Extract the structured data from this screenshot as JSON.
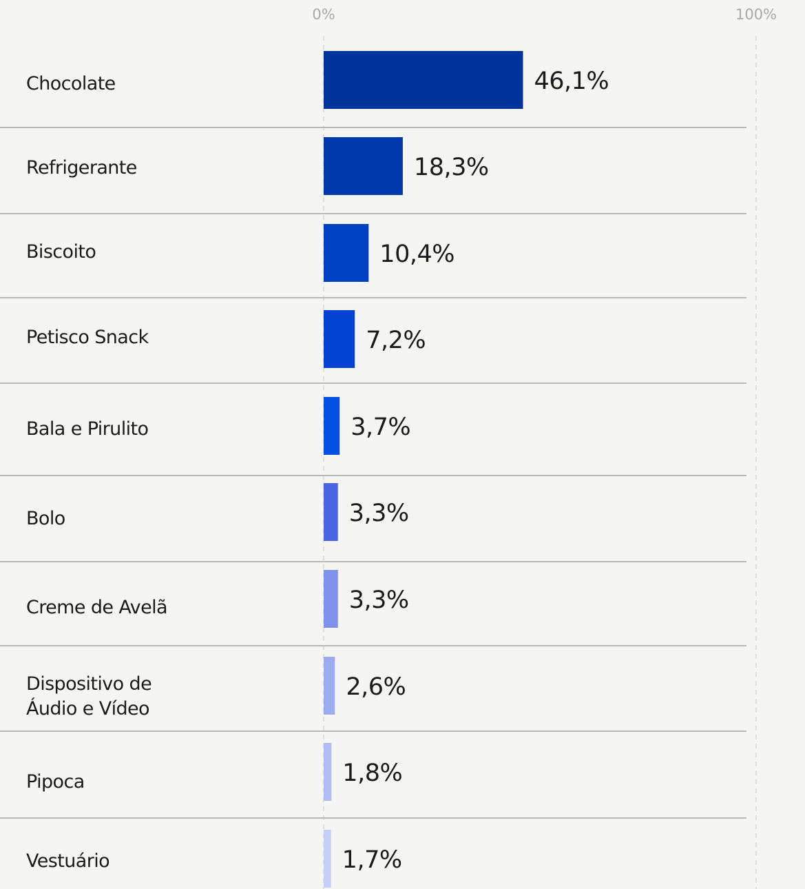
{
  "chart_data": {
    "type": "bar",
    "orientation": "horizontal",
    "xlim": [
      0,
      100
    ],
    "ticks": [
      {
        "value": 0,
        "label": "0%"
      },
      {
        "value": 100,
        "label": "100%"
      }
    ],
    "categories": [
      [
        "Chocolate"
      ],
      [
        "Refrigerante"
      ],
      [
        "Biscoito"
      ],
      [
        "Petisco Snack"
      ],
      [
        "Bala e Pirulito"
      ],
      [
        "Bolo"
      ],
      [
        "Creme de Avelã"
      ],
      [
        "Dispositivo de",
        "Áudio e Vídeo"
      ],
      [
        "Pipoca"
      ],
      [
        "Vestuário"
      ]
    ],
    "values": [
      46.1,
      18.3,
      10.4,
      7.2,
      3.7,
      3.3,
      3.3,
      2.6,
      1.8,
      1.7
    ],
    "value_labels": [
      "46,1%",
      "18,3%",
      "10,4%",
      "7,2%",
      "3,7%",
      "3,3%",
      "3,3%",
      "2,6%",
      "1,8%",
      "1,7%"
    ],
    "colors": [
      "#00349b",
      "#0039ab",
      "#0040c2",
      "#0443d2",
      "#0550e0",
      "#4a66e3",
      "#7f92ea",
      "#9babee",
      "#b0bdf3",
      "#c4cef6"
    ],
    "grid": true,
    "legend": "none"
  }
}
